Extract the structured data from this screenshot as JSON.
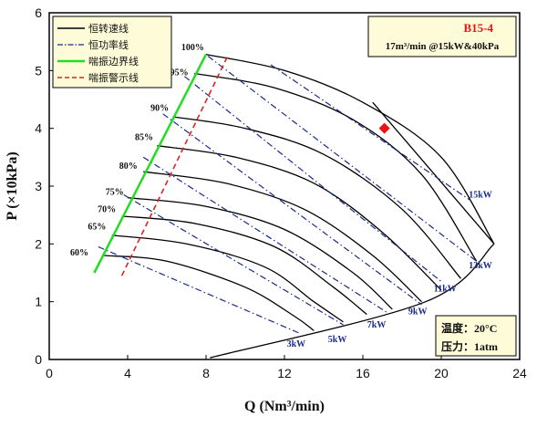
{
  "chart_data": {
    "type": "line",
    "xlabel": "Q (Nm³/min)",
    "ylabel": "P (×10kPa)",
    "xlim": [
      0,
      24
    ],
    "ylim": [
      0,
      6
    ],
    "xticks": [
      0,
      4,
      8,
      12,
      16,
      20,
      24
    ],
    "yticks": [
      0,
      1,
      2,
      3,
      4,
      5,
      6
    ],
    "legend": {
      "placement": "top-left",
      "entries": [
        {
          "name": "恒转速线",
          "style": "solid",
          "color": "#000000"
        },
        {
          "name": "恒功率线",
          "style": "dashdot",
          "color": "#1a2a8f"
        },
        {
          "name": "喘振边界线",
          "style": "solid",
          "color": "#22dd22"
        },
        {
          "name": "喘振警示线",
          "style": "dashed",
          "color": "#dd2222"
        }
      ]
    },
    "speed_lines": [
      {
        "label": "100%",
        "points": [
          [
            8.0,
            5.28
          ],
          [
            12.0,
            5.0
          ],
          [
            16.0,
            4.45
          ],
          [
            20.0,
            3.5
          ],
          [
            22.7,
            2.0
          ]
        ]
      },
      {
        "label": "95%",
        "points": [
          [
            7.4,
            4.95
          ],
          [
            11.5,
            4.7
          ],
          [
            15.5,
            4.15
          ],
          [
            19.0,
            3.2
          ],
          [
            21.8,
            1.7
          ]
        ]
      },
      {
        "label": "90%",
        "points": [
          [
            6.3,
            4.2
          ],
          [
            10.0,
            4.0
          ],
          [
            14.0,
            3.55
          ],
          [
            18.0,
            2.6
          ],
          [
            21.0,
            1.4
          ]
        ]
      },
      {
        "label": "85%",
        "points": [
          [
            5.5,
            3.7
          ],
          [
            9.5,
            3.5
          ],
          [
            13.5,
            3.05
          ],
          [
            17.0,
            2.2
          ],
          [
            20.0,
            1.2
          ]
        ]
      },
      {
        "label": "80%",
        "points": [
          [
            4.8,
            3.25
          ],
          [
            9.0,
            3.05
          ],
          [
            13.0,
            2.6
          ],
          [
            16.5,
            1.8
          ],
          [
            19.0,
            1.0
          ]
        ]
      },
      {
        "label": "75%",
        "points": [
          [
            4.0,
            2.8
          ],
          [
            8.0,
            2.65
          ],
          [
            12.0,
            2.25
          ],
          [
            15.5,
            1.5
          ],
          [
            17.5,
            0.87
          ]
        ]
      },
      {
        "label": "70%",
        "points": [
          [
            3.7,
            2.48
          ],
          [
            7.5,
            2.35
          ],
          [
            11.5,
            1.95
          ],
          [
            14.5,
            1.25
          ],
          [
            16.2,
            0.78
          ]
        ]
      },
      {
        "label": "65%",
        "points": [
          [
            3.2,
            2.15
          ],
          [
            7.0,
            2.0
          ],
          [
            11.0,
            1.6
          ],
          [
            13.5,
            1.0
          ],
          [
            15.0,
            0.65
          ]
        ]
      },
      {
        "label": "60%",
        "points": [
          [
            2.8,
            1.8
          ],
          [
            6.0,
            1.7
          ],
          [
            10.0,
            1.25
          ],
          [
            12.5,
            0.75
          ],
          [
            13.5,
            0.5
          ]
        ]
      }
    ],
    "power_lines": [
      {
        "label": "3kW",
        "points": [
          [
            2.5,
            1.95
          ],
          [
            12.8,
            0.45
          ]
        ]
      },
      {
        "label": "5kW",
        "points": [
          [
            3.8,
            2.85
          ],
          [
            15.0,
            0.6
          ]
        ]
      },
      {
        "label": "7kW",
        "points": [
          [
            4.8,
            3.5
          ],
          [
            17.3,
            0.8
          ]
        ]
      },
      {
        "label": "9kW",
        "points": [
          [
            5.8,
            4.25
          ],
          [
            19.0,
            0.95
          ]
        ]
      },
      {
        "label": "11kW",
        "points": [
          [
            6.9,
            4.9
          ],
          [
            20.0,
            1.35
          ]
        ]
      },
      {
        "label": "13kW",
        "points": [
          [
            8.1,
            5.25
          ],
          [
            21.8,
            1.7
          ]
        ]
      },
      {
        "label": "15kW",
        "points": [
          [
            11.3,
            5.1
          ],
          [
            21.5,
            2.75
          ]
        ]
      }
    ],
    "surge_line": [
      [
        2.3,
        1.5
      ],
      [
        8.0,
        5.28
      ]
    ],
    "surge_warning_line": [
      [
        3.7,
        1.45
      ],
      [
        9.1,
        5.25
      ]
    ],
    "min_flow_line": [
      [
        8.2,
        0.03
      ],
      [
        19.2,
        1.0
      ],
      [
        22.7,
        2.0
      ]
    ],
    "max_flow_line": [
      [
        16.5,
        4.45
      ],
      [
        22.7,
        2.0
      ]
    ],
    "operating_point": {
      "x": 17.1,
      "y": 4.0,
      "color": "#ee1111"
    },
    "info_box": {
      "title": "B15-4",
      "subtitle": "17m³/min @15kW&40kPa"
    },
    "condition_box": {
      "temperature": "温度：20°C",
      "pressure": "压力：1atm"
    },
    "speed_label_positions": [
      [
        7.9,
        5.35
      ],
      [
        7.1,
        4.92
      ],
      [
        6.1,
        4.3
      ],
      [
        5.3,
        3.8
      ],
      [
        4.5,
        3.3
      ],
      [
        3.8,
        2.85
      ],
      [
        3.4,
        2.55
      ],
      [
        2.9,
        2.25
      ],
      [
        2.0,
        1.8
      ]
    ],
    "power_label_positions": [
      [
        12.6,
        0.22
      ],
      [
        14.7,
        0.3
      ],
      [
        16.7,
        0.55
      ],
      [
        18.8,
        0.78
      ],
      [
        20.2,
        1.18
      ],
      [
        22.0,
        1.58
      ],
      [
        22.0,
        2.8
      ]
    ]
  }
}
